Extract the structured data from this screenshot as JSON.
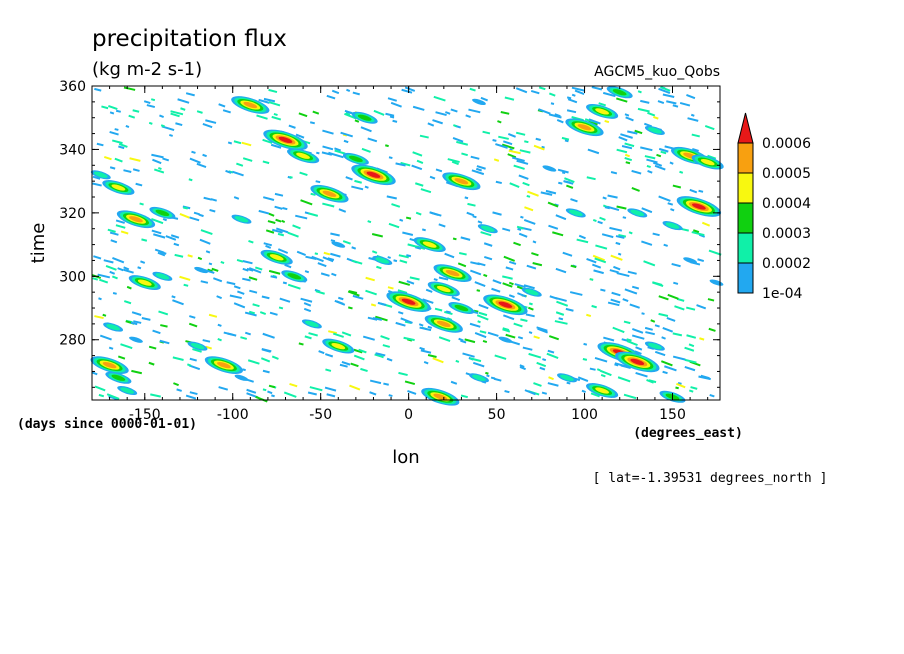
{
  "title": "precipitation flux",
  "units": "(kg m-2 s-1)",
  "dataset": "AGCM5_kuo_Qobs",
  "footnote": "[ lat=-1.39531 degrees_north ]",
  "chart_data": {
    "type": "heatmap",
    "xlabel": "lon",
    "xunits": "(degrees_east)",
    "ylabel": "time",
    "yunits": "(days since 0000-01-01)",
    "xlim": [
      -180,
      177
    ],
    "ylim": [
      261,
      360
    ],
    "xticks": [
      -150,
      -100,
      -50,
      0,
      50,
      100,
      150
    ],
    "yticks": [
      280,
      300,
      320,
      340,
      360
    ],
    "colorbar": {
      "levels": [
        "1e-04",
        "0.0002",
        "0.0003",
        "0.0004",
        "0.0005",
        "0.0006"
      ],
      "colors": [
        "#22a8f0",
        "#10f0a8",
        "#10d010",
        "#f8f810",
        "#f8a010",
        "#e81818"
      ]
    },
    "features": [
      {
        "lon": -170,
        "time": 272,
        "level": 5
      },
      {
        "lon": -165,
        "time": 268,
        "level": 3
      },
      {
        "lon": -160,
        "time": 264,
        "level": 2
      },
      {
        "lon": -155,
        "time": 280,
        "level": 1
      },
      {
        "lon": -168,
        "time": 284,
        "level": 2
      },
      {
        "lon": -150,
        "time": 298,
        "level": 4
      },
      {
        "lon": -140,
        "time": 300,
        "level": 2
      },
      {
        "lon": -155,
        "time": 318,
        "level": 5
      },
      {
        "lon": -140,
        "time": 320,
        "level": 3
      },
      {
        "lon": -165,
        "time": 328,
        "level": 4
      },
      {
        "lon": -175,
        "time": 332,
        "level": 2
      },
      {
        "lon": -120,
        "time": 278,
        "level": 2
      },
      {
        "lon": -105,
        "time": 272,
        "level": 5
      },
      {
        "lon": -95,
        "time": 268,
        "level": 1
      },
      {
        "lon": -118,
        "time": 302,
        "level": 1
      },
      {
        "lon": -95,
        "time": 318,
        "level": 2
      },
      {
        "lon": -90,
        "time": 354,
        "level": 5
      },
      {
        "lon": -70,
        "time": 343,
        "level": 6
      },
      {
        "lon": -60,
        "time": 338,
        "level": 4
      },
      {
        "lon": -75,
        "time": 306,
        "level": 4
      },
      {
        "lon": -65,
        "time": 300,
        "level": 3
      },
      {
        "lon": -55,
        "time": 285,
        "level": 2
      },
      {
        "lon": -40,
        "time": 278,
        "level": 4
      },
      {
        "lon": -45,
        "time": 326,
        "level": 5
      },
      {
        "lon": -30,
        "time": 337,
        "level": 3
      },
      {
        "lon": -20,
        "time": 332,
        "level": 6
      },
      {
        "lon": -25,
        "time": 350,
        "level": 3
      },
      {
        "lon": -40,
        "time": 310,
        "level": 1
      },
      {
        "lon": -15,
        "time": 305,
        "level": 2
      },
      {
        "lon": 0,
        "time": 292,
        "level": 6
      },
      {
        "lon": 12,
        "time": 310,
        "level": 4
      },
      {
        "lon": 20,
        "time": 296,
        "level": 4
      },
      {
        "lon": 25,
        "time": 301,
        "level": 5
      },
      {
        "lon": 30,
        "time": 290,
        "level": 3
      },
      {
        "lon": 20,
        "time": 285,
        "level": 5
      },
      {
        "lon": 18,
        "time": 262,
        "level": 5
      },
      {
        "lon": 40,
        "time": 268,
        "level": 2
      },
      {
        "lon": 30,
        "time": 330,
        "level": 5
      },
      {
        "lon": 45,
        "time": 315,
        "level": 2
      },
      {
        "lon": 55,
        "time": 291,
        "level": 6
      },
      {
        "lon": 70,
        "time": 295,
        "level": 2
      },
      {
        "lon": 40,
        "time": 355,
        "level": 1
      },
      {
        "lon": 55,
        "time": 280,
        "level": 1
      },
      {
        "lon": 90,
        "time": 268,
        "level": 2
      },
      {
        "lon": 100,
        "time": 347,
        "level": 5
      },
      {
        "lon": 110,
        "time": 352,
        "level": 4
      },
      {
        "lon": 120,
        "time": 358,
        "level": 3
      },
      {
        "lon": 120,
        "time": 276,
        "level": 6
      },
      {
        "lon": 130,
        "time": 273,
        "level": 6
      },
      {
        "lon": 140,
        "time": 278,
        "level": 2
      },
      {
        "lon": 110,
        "time": 264,
        "level": 4
      },
      {
        "lon": 150,
        "time": 262,
        "level": 3
      },
      {
        "lon": 160,
        "time": 338,
        "level": 5
      },
      {
        "lon": 170,
        "time": 336,
        "level": 4
      },
      {
        "lon": 165,
        "time": 322,
        "level": 6
      },
      {
        "lon": 150,
        "time": 316,
        "level": 2
      },
      {
        "lon": 175,
        "time": 298,
        "level": 1
      },
      {
        "lon": 160,
        "time": 305,
        "level": 1
      },
      {
        "lon": 130,
        "time": 320,
        "level": 2
      },
      {
        "lon": 140,
        "time": 346,
        "level": 2
      },
      {
        "lon": 95,
        "time": 320,
        "level": 2
      },
      {
        "lon": 80,
        "time": 334,
        "level": 1
      }
    ]
  }
}
